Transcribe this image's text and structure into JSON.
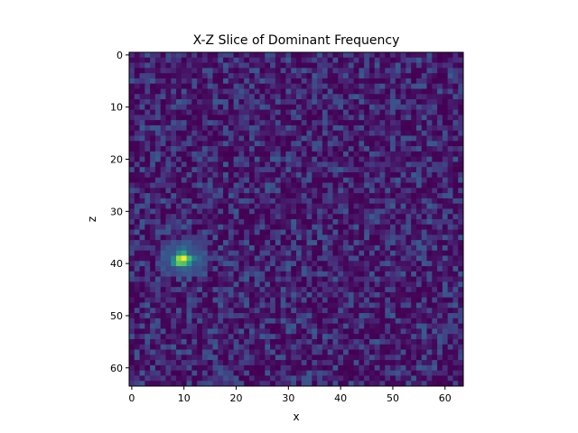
{
  "chart_data": {
    "type": "heatmap",
    "title": "X-Z Slice of Dominant Frequency",
    "xlabel": "x",
    "ylabel": "z",
    "grid_size": [
      64,
      64
    ],
    "x_range": [
      -0.5,
      63.5
    ],
    "z_range": [
      -0.5,
      63.5
    ],
    "z_axis_inverted": true,
    "colormap": "viridis",
    "grid": false,
    "x_ticks": [
      0,
      10,
      20,
      30,
      40,
      50,
      60
    ],
    "x_tick_labels": [
      "0",
      "10",
      "20",
      "30",
      "40",
      "50",
      "60"
    ],
    "z_ticks": [
      0,
      10,
      20,
      30,
      40,
      50,
      60
    ],
    "z_tick_labels": [
      "0",
      "10",
      "20",
      "30",
      "40",
      "50",
      "60"
    ],
    "background_level_range": [
      0.0,
      0.3
    ],
    "hotspot": {
      "peak_cells": [
        {
          "x": 10,
          "z": 39,
          "value": 1.0
        },
        {
          "x": 9,
          "z": 39,
          "value": 0.85
        },
        {
          "x": 11,
          "z": 39,
          "value": 0.7
        },
        {
          "x": 9,
          "z": 40,
          "value": 0.75
        },
        {
          "x": 10,
          "z": 40,
          "value": 0.72
        },
        {
          "x": 8,
          "z": 40,
          "value": 0.5
        },
        {
          "x": 11,
          "z": 40,
          "value": 0.52
        },
        {
          "x": 10,
          "z": 38,
          "value": 0.6
        },
        {
          "x": 9,
          "z": 38,
          "value": 0.48
        },
        {
          "x": 8,
          "z": 39,
          "value": 0.45
        },
        {
          "x": 12,
          "z": 39,
          "value": 0.42
        }
      ],
      "halo": {
        "x_range": [
          6,
          14
        ],
        "z_range": [
          36,
          42
        ],
        "level": 0.33
      }
    }
  }
}
